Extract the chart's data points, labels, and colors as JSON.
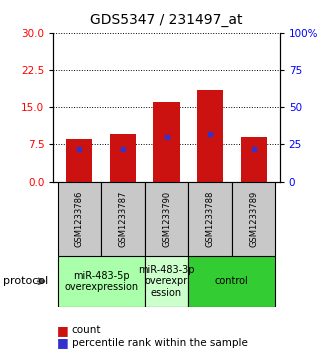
{
  "title": "GDS5347 / 231497_at",
  "samples": [
    "GSM1233786",
    "GSM1233787",
    "GSM1233790",
    "GSM1233788",
    "GSM1233789"
  ],
  "counts": [
    8.5,
    9.5,
    16.0,
    18.5,
    9.0
  ],
  "percentile_ranks": [
    6.5,
    6.5,
    9.0,
    9.5,
    6.5
  ],
  "ylim_left": [
    0,
    30
  ],
  "ylim_right": [
    0,
    100
  ],
  "yticks_left": [
    0,
    7.5,
    15,
    22.5,
    30
  ],
  "yticks_right": [
    0,
    25,
    50,
    75,
    100
  ],
  "bar_color": "#cc1111",
  "percentile_color": "#3333cc",
  "bar_width": 0.6,
  "groups": [
    {
      "label": "miR-483-5p\noverexpression",
      "cols": [
        0,
        1
      ],
      "color": "#aaffaa"
    },
    {
      "label": "miR-483-3p\noverexpr\nession",
      "cols": [
        2
      ],
      "color": "#ccffcc"
    },
    {
      "label": "control",
      "cols": [
        3,
        4
      ],
      "color": "#33cc33"
    }
  ],
  "protocol_label": "protocol",
  "legend_count_label": "count",
  "legend_percentile_label": "percentile rank within the sample",
  "title_fontsize": 10,
  "tick_fontsize": 7.5,
  "sample_label_fontsize": 6,
  "group_label_fontsize": 7,
  "legend_fontsize": 7.5,
  "protocol_fontsize": 8
}
